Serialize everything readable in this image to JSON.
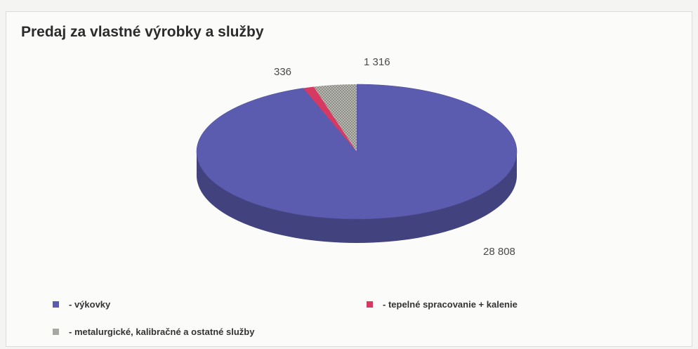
{
  "chart_data": {
    "type": "pie",
    "title": "Predaj za vlastné výrobky a služby",
    "series": [
      {
        "name": "- výkovky",
        "value": 28808,
        "label": "28 808",
        "color": "#5b5bb0"
      },
      {
        "name": "- tepelné spracovanie + kalenie",
        "value": 336,
        "label": "336",
        "color": "#d63a63"
      },
      {
        "name": "- metalurgické, kalibračné a ostatné služby",
        "value": 1316,
        "label": "1 316",
        "color": "#a8a8a2"
      }
    ],
    "legend_position": "bottom"
  }
}
